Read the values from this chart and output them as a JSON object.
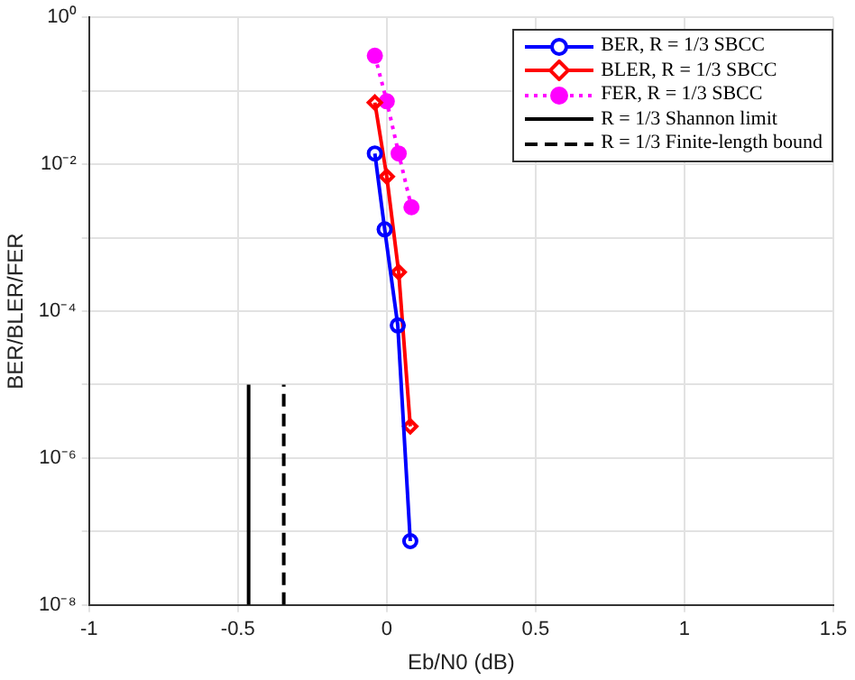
{
  "chart_data": {
    "type": "line",
    "xlabel": "Eb/N0 (dB)",
    "ylabel": "BER/BLER/FER",
    "log": "y",
    "grid": true,
    "legend": "top right",
    "xlim": [
      -1,
      1.5
    ],
    "xticks": [
      -1,
      -0.5,
      0,
      0.5,
      1,
      1.5
    ],
    "ylim": [
      1e-08,
      1
    ],
    "yticks": [
      {
        "value": 1e-08,
        "label": "10⁻⁸"
      },
      {
        "value": 1e-07,
        "label": null
      },
      {
        "value": 1e-06,
        "label": "10⁻⁶"
      },
      {
        "value": 1e-05,
        "label": null
      },
      {
        "value": 0.0001,
        "label": "10⁻⁴"
      },
      {
        "value": 0.001,
        "label": null
      },
      {
        "value": 0.01,
        "label": "10⁻²"
      },
      {
        "value": 0.1,
        "label": null
      },
      {
        "value": 1,
        "label": "10⁰"
      }
    ],
    "series": [
      {
        "name": "BER, R = 1/3 SBCC",
        "color": "#0000ff",
        "marker": "circle",
        "line_style": "solid",
        "x": [
          -0.04,
          -0.007,
          0.037,
          0.079
        ],
        "values": [
          0.014,
          0.0013,
          6.4e-05,
          7.4e-08
        ]
      },
      {
        "name": "BLER, R = 1/3 SBCC",
        "color": "#ff0000",
        "marker": "diamond",
        "line_style": "solid",
        "x": [
          -0.04,
          0.0,
          0.04,
          0.079
        ],
        "values": [
          0.069,
          0.0068,
          0.00034,
          2.7e-06
        ]
      },
      {
        "name": "FER, R = 1/3 SBCC",
        "color": "#ff00ff",
        "marker": "circle",
        "line_style": "dotted",
        "x": [
          -0.04,
          0.0,
          0.04,
          0.083
        ],
        "values": [
          0.3,
          0.072,
          0.014,
          0.0026
        ]
      },
      {
        "name": "R = 1/3 Shannon limit",
        "color": "#000000",
        "marker": "none",
        "line_style": "solid",
        "x": [
          -0.464,
          -0.464
        ],
        "values": [
          1e-08,
          1e-05
        ]
      },
      {
        "name": "R = 1/3 Finite-length bound",
        "color": "#000000",
        "marker": "none",
        "line_style": "dashed",
        "x": [
          -0.346,
          -0.346
        ],
        "values": [
          1e-08,
          1e-05
        ]
      }
    ]
  }
}
